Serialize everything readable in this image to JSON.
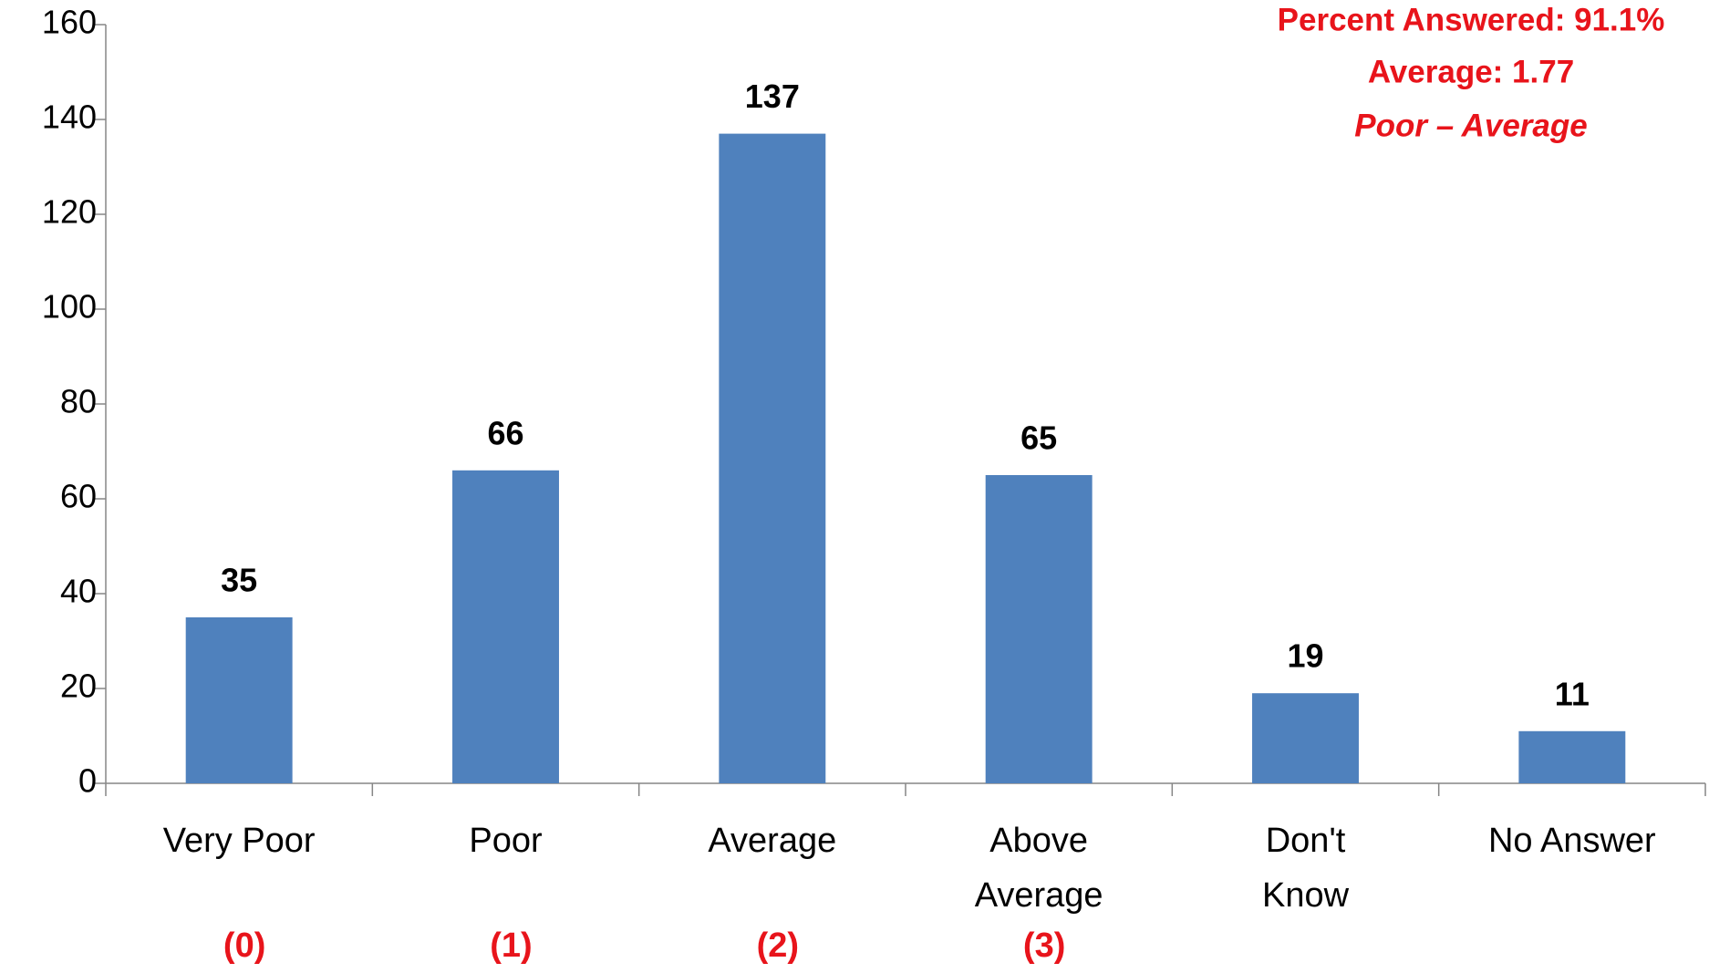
{
  "chart_data": {
    "type": "bar",
    "categories": [
      "Very Poor",
      "Poor",
      "Average",
      "Above Average",
      "Don't Know",
      "No Answer"
    ],
    "category_codes": [
      "(0)",
      "(1)",
      "(2)",
      "(3)",
      null,
      null
    ],
    "values": [
      35,
      66,
      137,
      65,
      19,
      11
    ],
    "color": "#4f81bd",
    "ylim": [
      0,
      160
    ],
    "yticks": [
      0,
      20,
      40,
      60,
      80,
      100,
      120,
      140,
      160
    ],
    "annotations": [
      "Percent Answered: 91.1%",
      "Average: 1.77",
      "Poor – Average"
    ],
    "annotation_color": "#e8141b",
    "grid": false
  }
}
